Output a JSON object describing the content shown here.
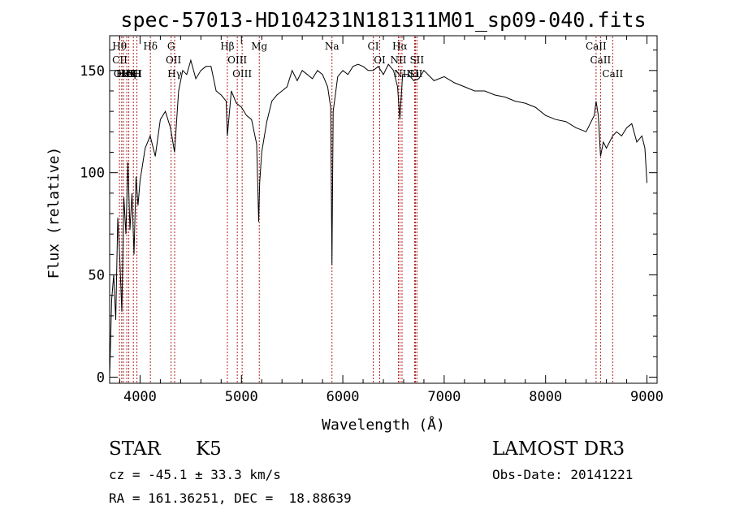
{
  "chart_data": {
    "type": "line",
    "title": "spec-57013-HD104231N181311M01_sp09-040.fits",
    "xlabel": "Wavelength (Å)",
    "ylabel": "Flux (relative)",
    "xlim": [
      3700,
      9100
    ],
    "ylim": [
      -3,
      167
    ],
    "x_ticks": [
      4000,
      5000,
      6000,
      7000,
      8000,
      9000
    ],
    "y_ticks": [
      0,
      50,
      100,
      150
    ],
    "grid": false,
    "legend": "none",
    "line_color": "#000000",
    "marker_color": "#b22222",
    "series": [
      {
        "x": [
          3700,
          3720,
          3740,
          3760,
          3780,
          3800,
          3820,
          3840,
          3860,
          3880,
          3900,
          3920,
          3940,
          3960,
          3980,
          4000,
          4050,
          4100,
          4150,
          4200,
          4250,
          4300,
          4340,
          4380,
          4420,
          4460,
          4500,
          4550,
          4600,
          4650,
          4700,
          4750,
          4800,
          4850,
          4861,
          4900,
          4950,
          5000,
          5050,
          5100,
          5150,
          5170,
          5180,
          5200,
          5250,
          5300,
          5350,
          5400,
          5450,
          5500,
          5550,
          5600,
          5650,
          5700,
          5750,
          5800,
          5850,
          5880,
          5893,
          5905,
          5950,
          6000,
          6050,
          6100,
          6150,
          6200,
          6250,
          6300,
          6350,
          6400,
          6450,
          6500,
          6540,
          6563,
          6590,
          6650,
          6700,
          6750,
          6800,
          6900,
          7000,
          7100,
          7200,
          7300,
          7400,
          7500,
          7600,
          7700,
          7800,
          7900,
          8000,
          8100,
          8200,
          8300,
          8400,
          8480,
          8498,
          8520,
          8542,
          8570,
          8600,
          8662,
          8700,
          8750,
          8800,
          8850,
          8900,
          8950,
          8980,
          9000
        ],
        "y": [
          0,
          38,
          50,
          28,
          78,
          58,
          32,
          88,
          70,
          105,
          72,
          90,
          60,
          98,
          84,
          96,
          112,
          118,
          108,
          126,
          130,
          122,
          110,
          140,
          150,
          148,
          155,
          146,
          150,
          152,
          152,
          140,
          138,
          135,
          118,
          140,
          134,
          132,
          128,
          126,
          114,
          76,
          95,
          110,
          125,
          135,
          138,
          140,
          142,
          150,
          145,
          150,
          148,
          146,
          150,
          148,
          142,
          132,
          55,
          130,
          147,
          150,
          148,
          152,
          153,
          152,
          150,
          150,
          152,
          148,
          153,
          150,
          142,
          126,
          148,
          148,
          145,
          146,
          150,
          145,
          147,
          144,
          142,
          140,
          140,
          138,
          137,
          135,
          134,
          132,
          128,
          126,
          125,
          122,
          120,
          128,
          135,
          128,
          108,
          115,
          112,
          118,
          120,
          118,
          122,
          124,
          115,
          118,
          112,
          95
        ]
      }
    ],
    "line_labels": [
      {
        "text": "Hθ",
        "x": 3797
      },
      {
        "text": "CII",
        "x": 3800
      },
      {
        "text": "OIII",
        "x": 3835
      },
      {
        "text": "Hε",
        "x": 3830
      },
      {
        "text": "HeI",
        "x": 3870
      },
      {
        "text": "Hη",
        "x": 3889
      },
      {
        "text": "K",
        "x": 3934
      },
      {
        "text": "SII",
        "x": 3950
      },
      {
        "text": "H",
        "x": 3969
      },
      {
        "text": "Hδ",
        "x": 4102
      },
      {
        "text": "G",
        "x": 4306
      },
      {
        "text": "OII",
        "x": 4330
      },
      {
        "text": "Hγ",
        "x": 4341
      },
      {
        "text": "Hβ",
        "x": 4861
      },
      {
        "text": "OIII",
        "x": 4959
      },
      {
        "text": "OIII",
        "x": 5007
      },
      {
        "text": "Mg",
        "x": 5176
      },
      {
        "text": "Na",
        "x": 5893
      },
      {
        "text": "CI",
        "x": 6300
      },
      {
        "text": "OI",
        "x": 6364
      },
      {
        "text": "Hα",
        "x": 6563
      },
      {
        "text": "NII",
        "x": 6548
      },
      {
        "text": "NII",
        "x": 6584
      },
      {
        "text": "SII",
        "x": 6717
      },
      {
        "text": "Li",
        "x": 6708
      },
      {
        "text": "SII",
        "x": 6731
      },
      {
        "text": "CaII",
        "x": 8498
      },
      {
        "text": "CaII",
        "x": 8542
      },
      {
        "text": "CaII",
        "x": 8662
      }
    ],
    "marker_lines": [
      3797,
      3819,
      3835,
      3869,
      3889,
      3934,
      3969,
      4102,
      4306,
      4341,
      4861,
      4959,
      5007,
      5176,
      5893,
      6300,
      6364,
      6548,
      6563,
      6584,
      6708,
      6717,
      6731,
      8498,
      8542,
      8662
    ]
  },
  "info": {
    "object_class": "STAR",
    "subclass": "K5",
    "survey": "LAMOST DR3",
    "redshift_line": "cz = -45.1 ± 33.3 km/s",
    "obs_date_line": "Obs-Date: 20141221",
    "coords_line": "RA = 161.36251, DEC =  18.88639"
  }
}
